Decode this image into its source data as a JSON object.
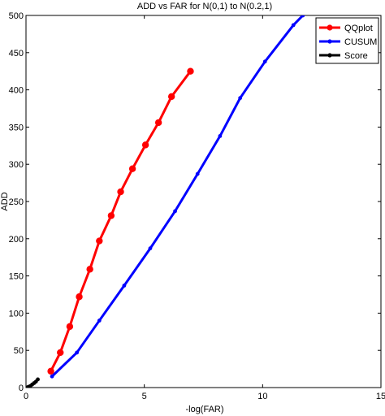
{
  "chart_data": {
    "type": "line",
    "title": "ADD vs FAR for N(0,1) to N(0.2,1)",
    "xlabel": "-log(FAR)",
    "ylabel": "ADD",
    "xlim": [
      0,
      15
    ],
    "ylim": [
      0,
      500
    ],
    "xticks": [
      0,
      5,
      10,
      15
    ],
    "yticks": [
      0,
      50,
      100,
      150,
      200,
      250,
      300,
      350,
      400,
      450,
      500
    ],
    "grid": false,
    "legend_position": "top-right",
    "series": [
      {
        "name": "QQplot",
        "color": "#ff0000",
        "marker": "circle",
        "x": [
          1.05,
          1.45,
          1.85,
          2.25,
          2.7,
          3.1,
          3.6,
          4.0,
          4.5,
          5.05,
          5.6,
          6.15,
          6.95
        ],
        "y": [
          22,
          47,
          82,
          122,
          159,
          197,
          231,
          263,
          294,
          326,
          356,
          391,
          425
        ]
      },
      {
        "name": "CUSUM",
        "color": "#0000ff",
        "marker": "dot",
        "x": [
          1.1,
          2.15,
          3.1,
          4.15,
          5.25,
          6.3,
          7.25,
          8.2,
          9.05,
          10.1,
          11.3,
          11.7
        ],
        "y": [
          15,
          47,
          90,
          137,
          187,
          237,
          287,
          338,
          389,
          438,
          487,
          500
        ]
      },
      {
        "name": "Score",
        "color": "#000000",
        "marker": "dot",
        "x": [
          0.02,
          0.1,
          0.18,
          0.26,
          0.34,
          0.42,
          0.5
        ],
        "y": [
          0,
          1,
          2,
          4,
          6,
          8,
          11
        ]
      }
    ]
  }
}
